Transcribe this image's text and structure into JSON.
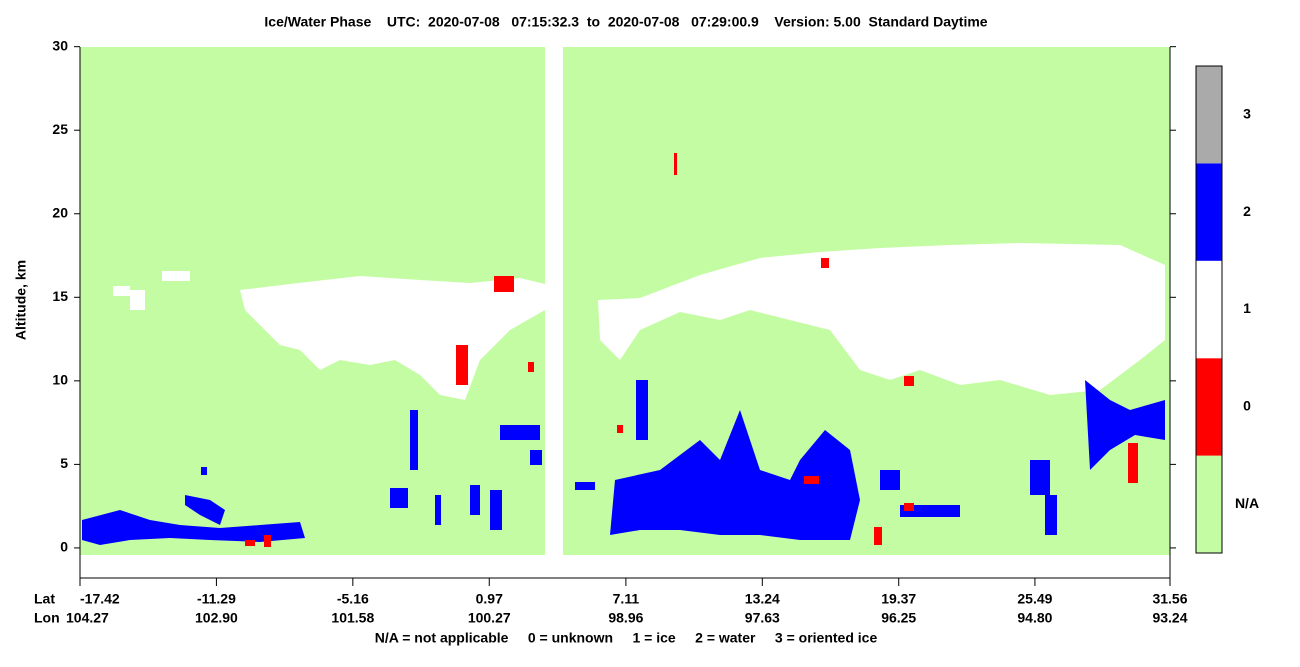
{
  "chart_data": {
    "type": "heatmap",
    "title": "Ice/Water Phase    UTC:  2020-07-08   07:15:32.3  to  2020-07-08   07:29:00.9    Version: 5.00  Standard Daytime",
    "ylabel": "Altitude, km",
    "ylim": [
      -1.8,
      30.1
    ],
    "yticks": [
      0,
      5,
      10,
      15,
      20,
      25,
      30
    ],
    "xlim": [
      -17.42,
      31.56
    ],
    "xticks": [
      -17.42,
      -11.29,
      -5.16,
      0.97,
      7.11,
      13.24,
      19.37,
      25.49,
      31.56
    ],
    "x_row_label": "Lat",
    "x2_row_label": "Lon",
    "x2_labels": [
      "104.27",
      "102.90",
      "101.58",
      "100.27",
      "98.96",
      "97.63",
      "96.25",
      "94.80",
      "93.24"
    ],
    "legend": {
      "labels": [
        "N/A",
        "0",
        "1",
        "2",
        "3"
      ],
      "colors": [
        "#c4fca4",
        "#ff0000",
        "#ffffff",
        "#0000ff",
        "#aaaaaa"
      ]
    },
    "footnote": "N/A = not applicable     0 = unknown     1 = ice     2 = water     3 = oriented ice"
  }
}
